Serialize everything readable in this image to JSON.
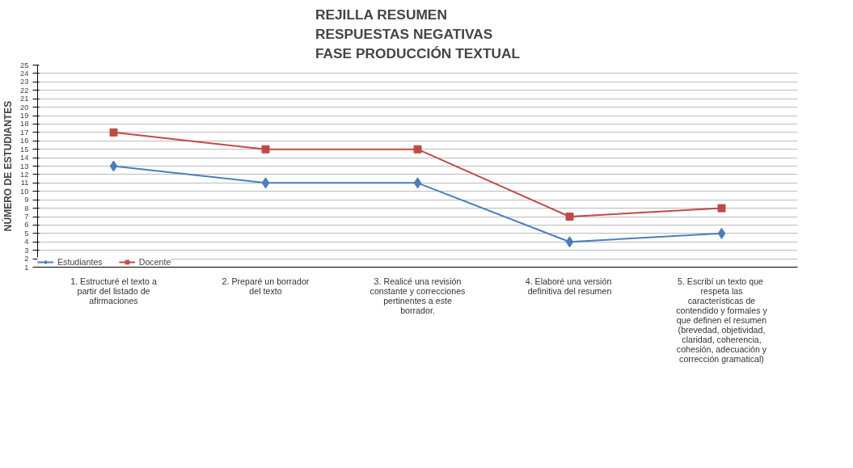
{
  "chart_data": {
    "type": "line",
    "title": "REJILLA RESUMEN\nRESPUESTAS NEGATIVAS\nFASE PRODUCCIÓN TEXTUAL",
    "ylabel": "NÚMERO DE ESTUDIANTES",
    "categories": [
      "1. Estructuré el texto a partir del listado de afirmaciones",
      "2. Preparé un borrador del texto",
      "3. Realicé una revisión constante y correcciones pertinentes a este borrador.",
      "4.  Elaboré una versión definitiva del resumen",
      "5. Escribí un  texto que respeta las características de contendido y formales y que definen el resumen (brevedad, objetividad, claridad, coherencia, cohesión, adecuación y corrección gramatical)"
    ],
    "series": [
      {
        "name": "Estudiantes",
        "color": "#4a7ebb",
        "marker": "diamond",
        "values": [
          13,
          11,
          11,
          4,
          5
        ]
      },
      {
        "name": "Docente",
        "color": "#be4b48",
        "marker": "square",
        "values": [
          17,
          15,
          15,
          7,
          8
        ]
      }
    ],
    "ylim": [
      1,
      25
    ],
    "yticks": [
      1,
      2,
      3,
      4,
      5,
      6,
      7,
      8,
      9,
      10,
      11,
      12,
      13,
      14,
      15,
      16,
      17,
      18,
      19,
      20,
      21,
      22,
      23,
      24,
      25
    ],
    "grid": "y",
    "legend": "bottom left",
    "line_style": "solid"
  }
}
